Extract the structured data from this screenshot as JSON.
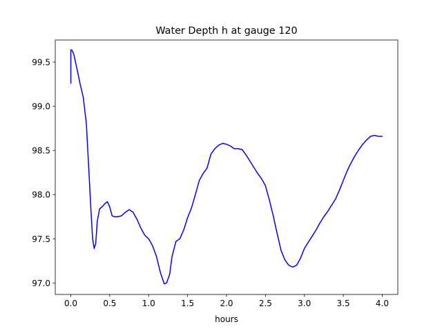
{
  "chart_data": {
    "type": "line",
    "title": "Water Depth h at gauge 120",
    "xlabel": "hours",
    "ylabel": "",
    "xlim": [
      -0.2,
      4.2
    ],
    "ylim": [
      96.87,
      99.75
    ],
    "xticks": [
      0.0,
      0.5,
      1.0,
      1.5,
      2.0,
      2.5,
      3.0,
      3.5,
      4.0
    ],
    "xtick_labels": [
      "0.0",
      "0.5",
      "1.0",
      "1.5",
      "2.0",
      "2.5",
      "3.0",
      "3.5",
      "4.0"
    ],
    "yticks": [
      97.0,
      97.5,
      98.0,
      98.5,
      99.0,
      99.5
    ],
    "ytick_labels": [
      "97.0",
      "97.5",
      "98.0",
      "98.5",
      "99.0",
      "99.5"
    ],
    "grid": false,
    "legend": "none",
    "series": [
      {
        "color": "#0000ff",
        "x": [
          0.0,
          0.0,
          0.02,
          0.04,
          0.08,
          0.12,
          0.16,
          0.2,
          0.23,
          0.26,
          0.28,
          0.3,
          0.32,
          0.34,
          0.37,
          0.4,
          0.44,
          0.47,
          0.5,
          0.53,
          0.56,
          0.6,
          0.65,
          0.7,
          0.75,
          0.8,
          0.85,
          0.9,
          0.95,
          1.0,
          1.05,
          1.1,
          1.15,
          1.2,
          1.23,
          1.27,
          1.3,
          1.35,
          1.4,
          1.45,
          1.5,
          1.55,
          1.6,
          1.65,
          1.7,
          1.75,
          1.8,
          1.85,
          1.9,
          1.95,
          2.0,
          2.05,
          2.1,
          2.15,
          2.2,
          2.25,
          2.3,
          2.35,
          2.4,
          2.45,
          2.5,
          2.55,
          2.6,
          2.65,
          2.7,
          2.75,
          2.8,
          2.85,
          2.9,
          2.95,
          3.0,
          3.05,
          3.1,
          3.15,
          3.2,
          3.25,
          3.3,
          3.35,
          3.4,
          3.45,
          3.5,
          3.55,
          3.6,
          3.65,
          3.7,
          3.75,
          3.8,
          3.85,
          3.9,
          3.95,
          4.0
        ],
        "y": [
          99.26,
          99.64,
          99.63,
          99.58,
          99.42,
          99.25,
          99.1,
          98.8,
          98.3,
          97.8,
          97.5,
          97.39,
          97.45,
          97.7,
          97.84,
          97.86,
          97.9,
          97.92,
          97.86,
          97.76,
          97.75,
          97.75,
          97.76,
          97.8,
          97.83,
          97.8,
          97.72,
          97.62,
          97.54,
          97.5,
          97.42,
          97.3,
          97.12,
          96.99,
          97.0,
          97.1,
          97.3,
          97.47,
          97.5,
          97.6,
          97.74,
          97.85,
          98.0,
          98.16,
          98.24,
          98.3,
          98.46,
          98.52,
          98.56,
          98.58,
          98.57,
          98.55,
          98.52,
          98.52,
          98.51,
          98.45,
          98.38,
          98.31,
          98.24,
          98.18,
          98.1,
          97.94,
          97.76,
          97.56,
          97.37,
          97.26,
          97.2,
          97.18,
          97.2,
          97.28,
          97.39,
          97.46,
          97.53,
          97.6,
          97.68,
          97.75,
          97.81,
          97.88,
          97.95,
          98.05,
          98.16,
          98.27,
          98.36,
          98.44,
          98.51,
          98.57,
          98.62,
          98.66,
          98.67,
          98.66,
          98.66
        ]
      }
    ]
  }
}
